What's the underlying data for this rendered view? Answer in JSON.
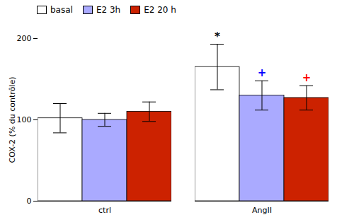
{
  "chart_data": {
    "type": "bar",
    "categories": [
      "ctrl",
      "AngII"
    ],
    "series": [
      {
        "name": "basal",
        "color": "white",
        "values": [
          102,
          165
        ],
        "errors": [
          18,
          28
        ]
      },
      {
        "name": "E2 3h",
        "color": "#aaaaff",
        "values": [
          100,
          130
        ],
        "errors": [
          8,
          18
        ]
      },
      {
        "name": "E2 20 h",
        "color": "#cc2200",
        "values": [
          110,
          127
        ],
        "errors": [
          12,
          15
        ]
      }
    ],
    "ylabel": "COX-2 (% du contrôle)",
    "ylim": [
      0,
      200
    ],
    "yticks": [
      0,
      100,
      200
    ],
    "legend": "upper left",
    "annotations": [
      {
        "text": "*",
        "category": "AngII",
        "series": "basal",
        "color": "black"
      },
      {
        "text": "+",
        "category": "AngII",
        "series": "E2 3h",
        "color": "blue"
      },
      {
        "text": "+",
        "category": "AngII",
        "series": "E2 20 h",
        "color": "red"
      }
    ]
  }
}
